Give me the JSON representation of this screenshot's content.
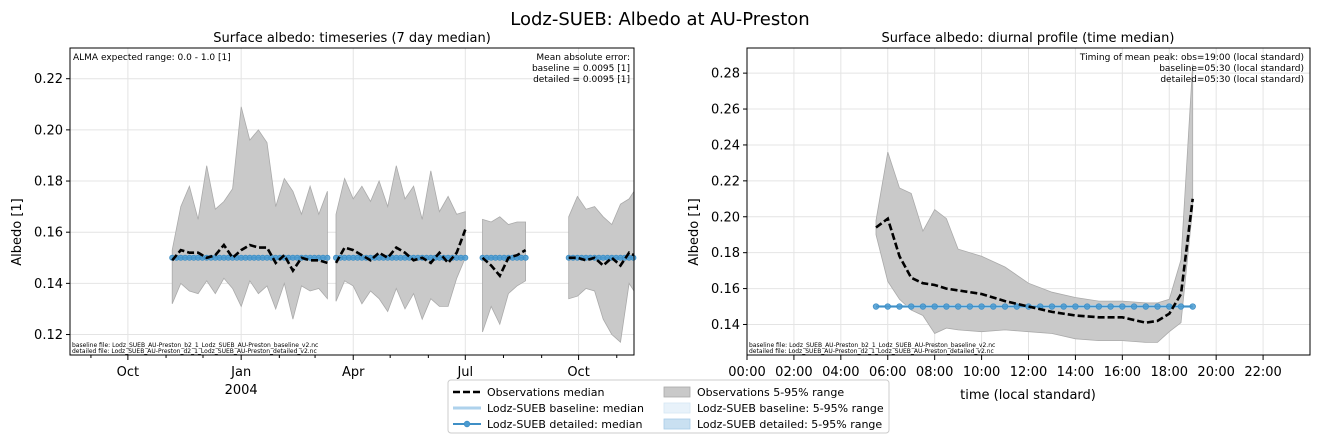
{
  "figure": {
    "title": "Lodz-SUEB: Albedo at AU-Preston"
  },
  "colors": {
    "obs": "#000000",
    "obs_range": "#c9c9c9",
    "baseline": "#aed2ec",
    "detailed": "#3f8fc6",
    "detailed_marker": "#4b9bd0",
    "baseline_range": "#e8f2fa",
    "detailed_range": "#c9e0f1",
    "grid": "#e4e4e4"
  },
  "legend": {
    "entries": [
      {
        "key": "obs_median",
        "label": "Observations median"
      },
      {
        "key": "baseline_median",
        "label": "Lodz-SUEB baseline: median"
      },
      {
        "key": "detailed_median",
        "label": "Lodz-SUEB detailed: median"
      },
      {
        "key": "obs_range",
        "label": "Observations 5-95% range"
      },
      {
        "key": "baseline_range",
        "label": "Lodz-SUEB baseline: 5-95% range"
      },
      {
        "key": "detailed_range",
        "label": "Lodz-SUEB detailed: 5-95% range"
      }
    ]
  },
  "chart_data": [
    {
      "type": "line",
      "title": "Surface albedo: timeseries (7 day median)",
      "xlabel": "",
      "ylabel": "Albedo [1]",
      "ylim": [
        0.112,
        0.232
      ],
      "xlim": [
        "2003-08-15",
        "2004-11-15"
      ],
      "x_ticks_major": [
        {
          "date": "2003-10-01",
          "label": "Oct",
          "sublabel": ""
        },
        {
          "date": "2004-01-01",
          "label": "Jan",
          "sublabel": "2004"
        },
        {
          "date": "2004-04-01",
          "label": "Apr",
          "sublabel": ""
        },
        {
          "date": "2004-07-01",
          "label": "Jul",
          "sublabel": ""
        },
        {
          "date": "2004-10-01",
          "label": "Oct",
          "sublabel": ""
        }
      ],
      "x_ticks_minor": [
        "2003-09-01",
        "2003-11-01",
        "2003-12-01",
        "2004-02-01",
        "2004-03-01",
        "2004-05-01",
        "2004-06-01",
        "2004-08-01",
        "2004-09-01",
        "2004-11-01"
      ],
      "y_ticks": [
        0.12,
        0.14,
        0.16,
        0.18,
        0.2,
        0.22
      ],
      "grid": true,
      "annotations": {
        "top_left": "ALMA expected range: 0.0 - 1.0 [1]",
        "top_right": [
          "Mean absolute error:",
          "baseline = 0.0095 [1]",
          "detailed = 0.0095 [1]"
        ],
        "bottom_left": [
          "baseline file: Lodz_SUEB_AU-Preston_b2_1_Lodz_SUEB_AU-Preston_baseline_v2.nc",
          "detailed file: Lodz_SUEB_AU-Preston_d2_1_Lodz_SUEB_AU-Preston_detailed_v2.nc"
        ]
      },
      "segments": [
        {
          "x": [
            "2003-11-06",
            "2003-11-13",
            "2003-11-20",
            "2003-11-27",
            "2003-12-04",
            "2003-12-11",
            "2003-12-18",
            "2003-12-25",
            "2004-01-01",
            "2004-01-08",
            "2004-01-15",
            "2004-01-22",
            "2004-01-29",
            "2004-02-05",
            "2004-02-12",
            "2004-02-19",
            "2004-02-26",
            "2004-03-04",
            "2004-03-11"
          ],
          "obs_median": [
            0.149,
            0.153,
            0.152,
            0.152,
            0.15,
            0.151,
            0.155,
            0.15,
            0.153,
            0.155,
            0.154,
            0.154,
            0.148,
            0.151,
            0.145,
            0.15,
            0.149,
            0.149,
            0.148
          ],
          "obs_p95": [
            0.153,
            0.17,
            0.178,
            0.165,
            0.186,
            0.169,
            0.172,
            0.177,
            0.209,
            0.196,
            0.2,
            0.195,
            0.17,
            0.181,
            0.176,
            0.167,
            0.178,
            0.167,
            0.176
          ],
          "obs_p5": [
            0.132,
            0.14,
            0.137,
            0.136,
            0.141,
            0.136,
            0.142,
            0.138,
            0.131,
            0.141,
            0.136,
            0.139,
            0.13,
            0.14,
            0.126,
            0.139,
            0.137,
            0.138,
            0.134
          ],
          "model": [
            0.15,
            0.15,
            0.15,
            0.15,
            0.15,
            0.15,
            0.15,
            0.15,
            0.15,
            0.15,
            0.15,
            0.15,
            0.15,
            0.15,
            0.15,
            0.15,
            0.15,
            0.15,
            0.15
          ]
        },
        {
          "x": [
            "2004-03-18",
            "2004-03-25",
            "2004-04-01",
            "2004-04-08",
            "2004-04-15",
            "2004-04-22",
            "2004-04-29",
            "2004-05-06",
            "2004-05-13",
            "2004-05-20",
            "2004-05-27",
            "2004-06-03",
            "2004-06-10",
            "2004-06-17",
            "2004-06-24",
            "2004-07-01"
          ],
          "obs_median": [
            0.148,
            0.154,
            0.153,
            0.151,
            0.149,
            0.152,
            0.15,
            0.154,
            0.152,
            0.149,
            0.15,
            0.148,
            0.152,
            0.148,
            0.152,
            0.161
          ],
          "obs_p95": [
            0.167,
            0.181,
            0.173,
            0.178,
            0.172,
            0.18,
            0.17,
            0.186,
            0.173,
            0.178,
            0.165,
            0.184,
            0.168,
            0.174,
            0.167,
            0.168
          ],
          "obs_p5": [
            0.133,
            0.141,
            0.139,
            0.132,
            0.137,
            0.134,
            0.129,
            0.138,
            0.13,
            0.136,
            0.126,
            0.134,
            0.131,
            0.131,
            0.142,
            0.15
          ],
          "model": [
            0.15,
            0.15,
            0.15,
            0.15,
            0.15,
            0.15,
            0.15,
            0.15,
            0.15,
            0.15,
            0.15,
            0.15,
            0.15,
            0.15,
            0.15,
            0.15
          ]
        },
        {
          "x": [
            "2004-07-15",
            "2004-07-22",
            "2004-07-29",
            "2004-08-05",
            "2004-08-12",
            "2004-08-19"
          ],
          "obs_median": [
            0.15,
            0.147,
            0.143,
            0.15,
            0.151,
            0.153
          ],
          "obs_p95": [
            0.165,
            0.164,
            0.166,
            0.163,
            0.164,
            0.164
          ],
          "obs_p5": [
            0.121,
            0.131,
            0.124,
            0.136,
            0.139,
            0.141
          ],
          "model": [
            0.15,
            0.15,
            0.15,
            0.15,
            0.15,
            0.15
          ]
        },
        {
          "x": [
            "2004-09-23",
            "2004-09-30",
            "2004-10-07",
            "2004-10-14",
            "2004-10-21",
            "2004-10-28",
            "2004-11-04",
            "2004-11-11",
            "2004-11-15"
          ],
          "obs_median": [
            0.15,
            0.15,
            0.149,
            0.15,
            0.147,
            0.15,
            0.147,
            0.152,
            0.151
          ],
          "obs_p95": [
            0.166,
            0.174,
            0.169,
            0.17,
            0.166,
            0.163,
            0.171,
            0.173,
            0.176
          ],
          "obs_p5": [
            0.134,
            0.135,
            0.138,
            0.137,
            0.126,
            0.12,
            0.117,
            0.14,
            0.137
          ],
          "model": [
            0.15,
            0.15,
            0.15,
            0.15,
            0.15,
            0.15,
            0.15,
            0.15,
            0.15
          ]
        }
      ]
    },
    {
      "type": "line",
      "title": "Surface albedo: diurnal profile (time median)",
      "xlabel": "time (local standard)",
      "ylabel": "Albedo [1]",
      "xlim": [
        0,
        24
      ],
      "ylim": [
        0.123,
        0.294
      ],
      "x_ticks": [
        {
          "v": 0,
          "label": "00:00"
        },
        {
          "v": 2,
          "label": "02:00"
        },
        {
          "v": 4,
          "label": "04:00"
        },
        {
          "v": 6,
          "label": "06:00"
        },
        {
          "v": 8,
          "label": "08:00"
        },
        {
          "v": 10,
          "label": "10:00"
        },
        {
          "v": 12,
          "label": "12:00"
        },
        {
          "v": 14,
          "label": "14:00"
        },
        {
          "v": 16,
          "label": "16:00"
        },
        {
          "v": 18,
          "label": "18:00"
        },
        {
          "v": 20,
          "label": "20:00"
        },
        {
          "v": 22,
          "label": "22:00"
        }
      ],
      "y_ticks": [
        0.14,
        0.16,
        0.18,
        0.2,
        0.22,
        0.24,
        0.26,
        0.28
      ],
      "grid": true,
      "annotations": {
        "top_right": [
          "Timing of mean peak: obs=19:00 (local standard)",
          "baseline=05:30 (local standard)",
          "detailed=05:30 (local standard)"
        ],
        "bottom_left": [
          "baseline file: Lodz_SUEB_AU-Preston_b2_1_Lodz_SUEB_AU-Preston_baseline_v2.nc",
          "detailed file: Lodz_SUEB_AU-Preston_d2_1_Lodz_SUEB_AU-Preston_detailed_v2.nc"
        ]
      },
      "obs": {
        "x": [
          5.5,
          6.0,
          6.5,
          7.0,
          7.5,
          8.0,
          8.5,
          9.0,
          10.0,
          11.0,
          12.0,
          13.0,
          14.0,
          15.0,
          16.0,
          17.0,
          17.5,
          18.0,
          18.5,
          19.0
        ],
        "median": [
          0.194,
          0.199,
          0.178,
          0.166,
          0.163,
          0.162,
          0.16,
          0.159,
          0.157,
          0.153,
          0.15,
          0.147,
          0.145,
          0.144,
          0.144,
          0.141,
          0.142,
          0.146,
          0.157,
          0.21
        ],
        "p95": [
          0.198,
          0.236,
          0.216,
          0.213,
          0.192,
          0.204,
          0.199,
          0.182,
          0.178,
          0.172,
          0.163,
          0.158,
          0.155,
          0.153,
          0.153,
          0.152,
          0.152,
          0.154,
          0.176,
          0.285
        ],
        "p5": [
          0.19,
          0.164,
          0.154,
          0.148,
          0.145,
          0.135,
          0.138,
          0.137,
          0.136,
          0.137,
          0.136,
          0.135,
          0.132,
          0.131,
          0.131,
          0.13,
          0.13,
          0.136,
          0.141,
          0.205
        ]
      },
      "model": {
        "x": [
          5.5,
          6.0,
          6.5,
          7.0,
          7.5,
          8.0,
          8.5,
          9.0,
          9.5,
          10.0,
          10.5,
          11.0,
          11.5,
          12.0,
          12.5,
          13.0,
          13.5,
          14.0,
          14.5,
          15.0,
          15.5,
          16.0,
          16.5,
          17.0,
          17.5,
          18.0,
          18.5,
          19.0
        ],
        "values": [
          0.15,
          0.15,
          0.15,
          0.15,
          0.15,
          0.15,
          0.15,
          0.15,
          0.15,
          0.15,
          0.15,
          0.15,
          0.15,
          0.15,
          0.15,
          0.15,
          0.15,
          0.15,
          0.15,
          0.15,
          0.15,
          0.15,
          0.15,
          0.15,
          0.15,
          0.15,
          0.15,
          0.15
        ]
      }
    }
  ]
}
